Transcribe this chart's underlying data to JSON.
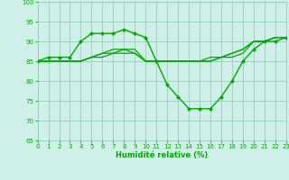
{
  "background_color": "#cff0e8",
  "grid_color": "#99ccbb",
  "line_color": "#00aa00",
  "marker_color": "#00aa00",
  "xlabel": "Humidité relative (%)",
  "xlabel_color": "#00aa00",
  "tick_color": "#00aa00",
  "ylim": [
    65,
    100
  ],
  "xlim": [
    0,
    23
  ],
  "yticks": [
    65,
    70,
    75,
    80,
    85,
    90,
    95,
    100
  ],
  "xticks": [
    0,
    1,
    2,
    3,
    4,
    5,
    6,
    7,
    8,
    9,
    10,
    11,
    12,
    13,
    14,
    15,
    16,
    17,
    18,
    19,
    20,
    21,
    22,
    23
  ],
  "series": [
    {
      "x": [
        0,
        1,
        2,
        3,
        4,
        5,
        6,
        7,
        8,
        9,
        10,
        11,
        12,
        13,
        14,
        15,
        16,
        17,
        18,
        19,
        20,
        21,
        22,
        23
      ],
      "y": [
        85,
        86,
        86,
        86,
        90,
        92,
        92,
        92,
        93,
        92,
        91,
        85,
        79,
        76,
        73,
        73,
        73,
        76,
        80,
        85,
        88,
        90,
        90,
        91
      ],
      "marker": "D",
      "marker_size": 2.0,
      "linewidth": 1.0
    },
    {
      "x": [
        0,
        1,
        2,
        3,
        4,
        5,
        6,
        7,
        8,
        9,
        10,
        11,
        12,
        13,
        14,
        15,
        16,
        17,
        18,
        19,
        20,
        21,
        22,
        23
      ],
      "y": [
        85,
        85,
        85,
        85,
        85,
        86,
        87,
        88,
        88,
        88,
        85,
        85,
        85,
        85,
        85,
        85,
        85,
        86,
        86,
        87,
        90,
        90,
        91,
        91
      ],
      "marker": null,
      "linewidth": 0.9
    },
    {
      "x": [
        0,
        1,
        2,
        3,
        4,
        5,
        6,
        7,
        8,
        9,
        10,
        11,
        12,
        13,
        14,
        15,
        16,
        17,
        18,
        19,
        20,
        21,
        22,
        23
      ],
      "y": [
        85,
        85,
        85,
        85,
        85,
        86,
        87,
        87,
        88,
        87,
        85,
        85,
        85,
        85,
        85,
        85,
        86,
        86,
        87,
        88,
        90,
        90,
        91,
        91
      ],
      "marker": null,
      "linewidth": 0.9
    },
    {
      "x": [
        0,
        1,
        2,
        3,
        4,
        5,
        6,
        7,
        8,
        9,
        10,
        11,
        12,
        13,
        14,
        15,
        16,
        17,
        18,
        19,
        20,
        21,
        22,
        23
      ],
      "y": [
        85,
        85,
        85,
        85,
        85,
        86,
        86,
        87,
        87,
        87,
        85,
        85,
        85,
        85,
        85,
        85,
        85,
        86,
        87,
        88,
        90,
        90,
        91,
        91
      ],
      "marker": null,
      "linewidth": 0.9
    }
  ]
}
